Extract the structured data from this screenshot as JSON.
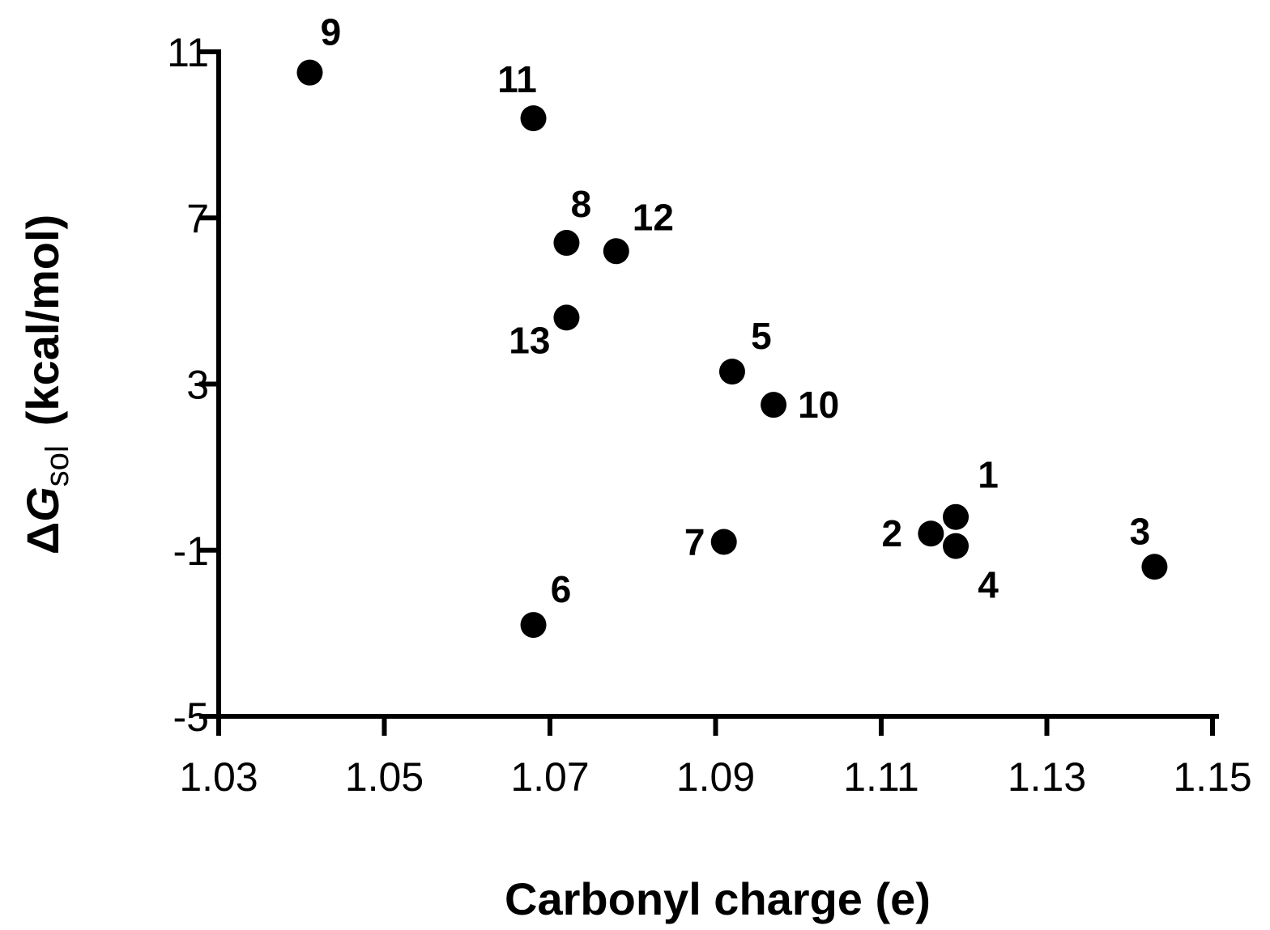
{
  "chart_data": {
    "type": "scatter",
    "title": "",
    "xlabel": "Carbonyl charge (e)",
    "ylabel": {
      "prefix": "Δ",
      "symbol": "G",
      "subscript": "sol",
      "units": "(kcal/mol)"
    },
    "xlim": [
      1.03,
      1.15
    ],
    "ylim": [
      -5,
      11
    ],
    "x_ticks": [
      "1.03",
      "1.05",
      "1.07",
      "1.09",
      "1.11",
      "1.13",
      "1.15"
    ],
    "y_ticks": [
      "-5",
      "-1",
      "3",
      "7",
      "11"
    ],
    "grid": false,
    "legend": "none",
    "points": [
      {
        "label": "1",
        "x": 1.119,
        "y": -0.2
      },
      {
        "label": "2",
        "x": 1.116,
        "y": -0.6
      },
      {
        "label": "3",
        "x": 1.143,
        "y": -1.4
      },
      {
        "label": "4",
        "x": 1.119,
        "y": -0.9
      },
      {
        "label": "5",
        "x": 1.092,
        "y": 3.3
      },
      {
        "label": "6",
        "x": 1.068,
        "y": -2.8
      },
      {
        "label": "7",
        "x": 1.091,
        "y": -0.8
      },
      {
        "label": "8",
        "x": 1.072,
        "y": 6.4
      },
      {
        "label": "9",
        "x": 1.041,
        "y": 10.5
      },
      {
        "label": "10",
        "x": 1.097,
        "y": 2.5
      },
      {
        "label": "11",
        "x": 1.068,
        "y": 9.4
      },
      {
        "label": "12",
        "x": 1.078,
        "y": 6.2
      },
      {
        "label": "13",
        "x": 1.072,
        "y": 4.6
      }
    ]
  }
}
